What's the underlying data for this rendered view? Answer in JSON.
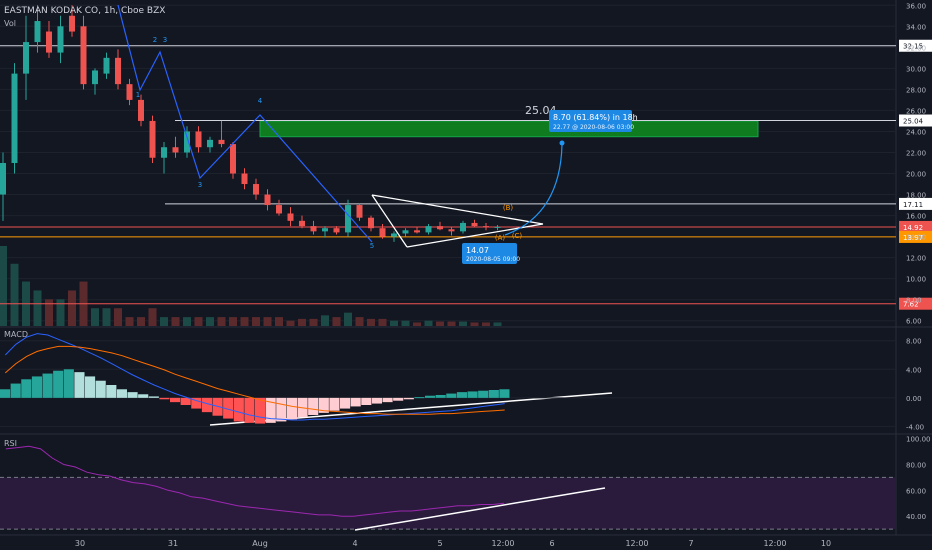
{
  "header": {
    "symbol_title": "EASTMAN KODAK CO, 1h, Cboe BZX",
    "volume_label": "Vol"
  },
  "colors": {
    "background": "#131722",
    "up": "#26a69a",
    "down": "#ef5350",
    "grid": "#1e222d",
    "text": "#b2b5be",
    "macd_line": "#2962ff",
    "signal_line": "#ff6d00",
    "rsi_line": "#9c27b0",
    "rsi_band": "#2a1b3d",
    "target_zone": "#0e7c1f",
    "callout": "#1e88e5"
  },
  "chart_data": [
    {
      "type": "candlestick",
      "panel": "price",
      "y_axis_ticks": [
        "36.00",
        "34.00",
        "32.00",
        "30.00",
        "28.00",
        "26.00",
        "24.00",
        "22.00",
        "20.00",
        "18.00",
        "16.00",
        "14.00",
        "12.00",
        "10.00",
        "8.00",
        "6.00"
      ],
      "ylim": [
        5.5,
        36.5
      ],
      "x_tick_labels": [
        "30",
        "31",
        "Aug",
        "4",
        "5",
        "12:00",
        "6",
        "12:00",
        "7",
        "12:00",
        "10"
      ],
      "candles": [
        {
          "o": 18.0,
          "h": 22.0,
          "l": 15.5,
          "c": 21.0
        },
        {
          "o": 21.0,
          "h": 30.5,
          "l": 20.0,
          "c": 29.5
        },
        {
          "o": 29.5,
          "h": 35.0,
          "l": 27.0,
          "c": 32.5
        },
        {
          "o": 32.5,
          "h": 36.0,
          "l": 31.5,
          "c": 34.5
        },
        {
          "o": 33.5,
          "h": 34.5,
          "l": 31.0,
          "c": 31.5
        },
        {
          "o": 31.5,
          "h": 35.0,
          "l": 30.5,
          "c": 34.0
        },
        {
          "o": 35.0,
          "h": 36.0,
          "l": 33.0,
          "c": 33.5
        },
        {
          "o": 34.0,
          "h": 35.0,
          "l": 28.0,
          "c": 28.5
        },
        {
          "o": 28.5,
          "h": 30.0,
          "l": 27.5,
          "c": 29.8
        },
        {
          "o": 29.5,
          "h": 31.5,
          "l": 29.0,
          "c": 31.0
        },
        {
          "o": 31.0,
          "h": 31.8,
          "l": 28.0,
          "c": 28.5
        },
        {
          "o": 28.5,
          "h": 29.0,
          "l": 26.5,
          "c": 27.0
        },
        {
          "o": 27.0,
          "h": 27.5,
          "l": 24.5,
          "c": 25.0
        },
        {
          "o": 25.0,
          "h": 25.5,
          "l": 21.0,
          "c": 21.5
        },
        {
          "o": 21.5,
          "h": 23.0,
          "l": 20.0,
          "c": 22.5
        },
        {
          "o": 22.5,
          "h": 23.5,
          "l": 21.5,
          "c": 22.0
        },
        {
          "o": 22.0,
          "h": 24.5,
          "l": 21.5,
          "c": 24.0
        },
        {
          "o": 24.0,
          "h": 24.5,
          "l": 22.0,
          "c": 22.5
        },
        {
          "o": 22.5,
          "h": 23.5,
          "l": 22.0,
          "c": 23.2
        },
        {
          "o": 23.2,
          "h": 25.0,
          "l": 22.5,
          "c": 22.8
        },
        {
          "o": 22.8,
          "h": 23.0,
          "l": 19.5,
          "c": 20.0
        },
        {
          "o": 20.0,
          "h": 20.5,
          "l": 18.5,
          "c": 19.0
        },
        {
          "o": 19.0,
          "h": 19.5,
          "l": 17.5,
          "c": 18.0
        },
        {
          "o": 18.0,
          "h": 18.5,
          "l": 16.5,
          "c": 17.0
        },
        {
          "o": 17.0,
          "h": 17.5,
          "l": 16.0,
          "c": 16.2
        },
        {
          "o": 16.2,
          "h": 16.8,
          "l": 15.0,
          "c": 15.5
        },
        {
          "o": 15.5,
          "h": 16.0,
          "l": 14.8,
          "c": 15.0
        },
        {
          "o": 15.0,
          "h": 15.5,
          "l": 14.2,
          "c": 14.5
        },
        {
          "o": 14.5,
          "h": 15.0,
          "l": 13.9,
          "c": 14.8
        },
        {
          "o": 14.8,
          "h": 15.0,
          "l": 14.2,
          "c": 14.4
        },
        {
          "o": 14.4,
          "h": 17.5,
          "l": 14.0,
          "c": 17.0
        },
        {
          "o": 17.0,
          "h": 17.2,
          "l": 15.5,
          "c": 15.8
        },
        {
          "o": 15.8,
          "h": 16.0,
          "l": 14.5,
          "c": 14.8
        },
        {
          "o": 14.8,
          "h": 15.2,
          "l": 13.8,
          "c": 14.0
        },
        {
          "o": 14.0,
          "h": 14.5,
          "l": 13.5,
          "c": 14.3
        },
        {
          "o": 14.3,
          "h": 14.8,
          "l": 14.0,
          "c": 14.6
        },
        {
          "o": 14.6,
          "h": 14.9,
          "l": 14.3,
          "c": 14.4
        },
        {
          "o": 14.4,
          "h": 15.2,
          "l": 14.2,
          "c": 15.0
        },
        {
          "o": 15.0,
          "h": 15.4,
          "l": 14.6,
          "c": 14.7
        },
        {
          "o": 14.7,
          "h": 14.9,
          "l": 14.1,
          "c": 14.5
        },
        {
          "o": 14.5,
          "h": 15.5,
          "l": 14.3,
          "c": 15.3
        },
        {
          "o": 15.3,
          "h": 15.6,
          "l": 14.9,
          "c": 15.0
        },
        {
          "o": 15.0,
          "h": 15.3,
          "l": 14.6,
          "c": 14.9
        },
        {
          "o": 14.9,
          "h": 15.1,
          "l": 14.6,
          "c": 14.92
        }
      ],
      "volume": [
        9,
        7,
        5,
        4,
        3,
        3,
        4,
        5,
        2,
        2,
        2,
        1,
        1,
        2,
        1,
        1,
        1,
        1,
        1,
        1,
        1,
        1,
        1,
        1,
        1,
        0.6,
        0.8,
        0.8,
        1.2,
        1,
        1.5,
        1,
        0.8,
        0.8,
        0.6,
        0.6,
        0.4,
        0.6,
        0.5,
        0.5,
        0.5,
        0.4,
        0.4,
        0.4
      ],
      "horizontal_levels": [
        {
          "value": 32.15,
          "label": "32.15",
          "color": "#d1d4dc"
        },
        {
          "value": 25.04,
          "label": "25.04",
          "color": "#d1d4dc"
        },
        {
          "value": 17.11,
          "label": "17.11",
          "color": "#d1d4dc"
        },
        {
          "value": 14.92,
          "label": "14.92",
          "color": "#ef5350"
        },
        {
          "value": 13.97,
          "label": "13.97",
          "color": "#ff9800"
        },
        {
          "value": 7.62,
          "label": "7.62",
          "color": "#ef5350"
        }
      ],
      "wave_labels": [
        {
          "label": "1",
          "x": 138,
          "y": 97
        },
        {
          "label": "2",
          "x": 155,
          "y": 42
        },
        {
          "label": "3",
          "x": 165,
          "y": 42
        },
        {
          "label": "3",
          "x": 200,
          "y": 187
        },
        {
          "label": "4",
          "x": 260,
          "y": 103
        },
        {
          "label": "5",
          "x": 372,
          "y": 248
        },
        {
          "label": "(B)",
          "x": 508,
          "y": 210
        },
        {
          "label": "(A)",
          "x": 500,
          "y": 240
        },
        {
          "label": "(C)",
          "x": 517,
          "y": 238
        }
      ],
      "target_label": "25.04",
      "projection_callout": {
        "line1": "8.70 (61.84%) in 18h",
        "line2": "22.77 @ 2020-08-06  03:00"
      },
      "low_callout": {
        "line1": "14.07",
        "line2": "2020-08-05  09:00"
      }
    },
    {
      "type": "bar+line",
      "panel": "macd",
      "name": "MACD",
      "y_axis_ticks": [
        "8.00",
        "4.00",
        "0.00",
        "-4.00"
      ],
      "ylim": [
        -4.5,
        9.5
      ],
      "histogram": [
        1.2,
        2.0,
        2.6,
        3.0,
        3.4,
        3.8,
        4.0,
        3.6,
        3.0,
        2.4,
        1.8,
        1.2,
        0.8,
        0.5,
        0.2,
        -0.2,
        -0.6,
        -1.0,
        -1.5,
        -2.0,
        -2.5,
        -2.9,
        -3.3,
        -3.5,
        -3.6,
        -3.5,
        -3.3,
        -3.0,
        -2.7,
        -2.4,
        -2.1,
        -1.8,
        -1.5,
        -1.2,
        -1.0,
        -0.8,
        -0.6,
        -0.4,
        -0.2,
        0.1,
        0.3,
        0.4,
        0.6,
        0.8,
        0.9,
        1.0,
        1.1,
        1.2
      ],
      "macd_line": [
        6.0,
        7.5,
        8.5,
        9.0,
        8.8,
        8.2,
        7.6,
        7.0,
        6.3,
        5.6,
        4.8,
        4.0,
        3.2,
        2.5,
        1.8,
        1.2,
        0.6,
        0.1,
        -0.4,
        -0.8,
        -1.2,
        -1.6,
        -2.0,
        -2.4,
        -2.7,
        -2.9,
        -3.0,
        -3.1,
        -3.1,
        -3.0,
        -3.0,
        -2.9,
        -2.8,
        -2.7,
        -2.6,
        -2.5,
        -2.4,
        -2.3,
        -2.2,
        -2.1,
        -2.0,
        -1.9,
        -1.8,
        -1.6,
        -1.4,
        -1.2,
        -1.0,
        -0.8
      ],
      "signal_line": [
        3.5,
        4.8,
        5.8,
        6.5,
        6.9,
        7.2,
        7.2,
        7.1,
        6.9,
        6.6,
        6.3,
        5.9,
        5.4,
        4.9,
        4.4,
        3.9,
        3.3,
        2.8,
        2.3,
        1.8,
        1.3,
        0.9,
        0.5,
        0.1,
        -0.3,
        -0.6,
        -0.9,
        -1.2,
        -1.4,
        -1.6,
        -1.8,
        -1.9,
        -2.0,
        -2.1,
        -2.2,
        -2.2,
        -2.3,
        -2.3,
        -2.3,
        -2.3,
        -2.3,
        -2.2,
        -2.2,
        -2.1,
        -2.0,
        -1.9,
        -1.8,
        -1.7
      ]
    },
    {
      "type": "line",
      "panel": "rsi",
      "name": "RSI",
      "y_axis_ticks": [
        "100.00",
        "80.00",
        "60.00",
        "40.00"
      ],
      "ylim": [
        27,
        102
      ],
      "band": [
        30,
        70
      ],
      "values": [
        92,
        93,
        94,
        92,
        85,
        80,
        78,
        74,
        72,
        71,
        68,
        66,
        65,
        63,
        60,
        58,
        55,
        54,
        52,
        50,
        48,
        47,
        46,
        45,
        44,
        43,
        42,
        41,
        41,
        40,
        40,
        41,
        42,
        43,
        44,
        44,
        45,
        46,
        47,
        48,
        48,
        49,
        49,
        50
      ]
    }
  ]
}
